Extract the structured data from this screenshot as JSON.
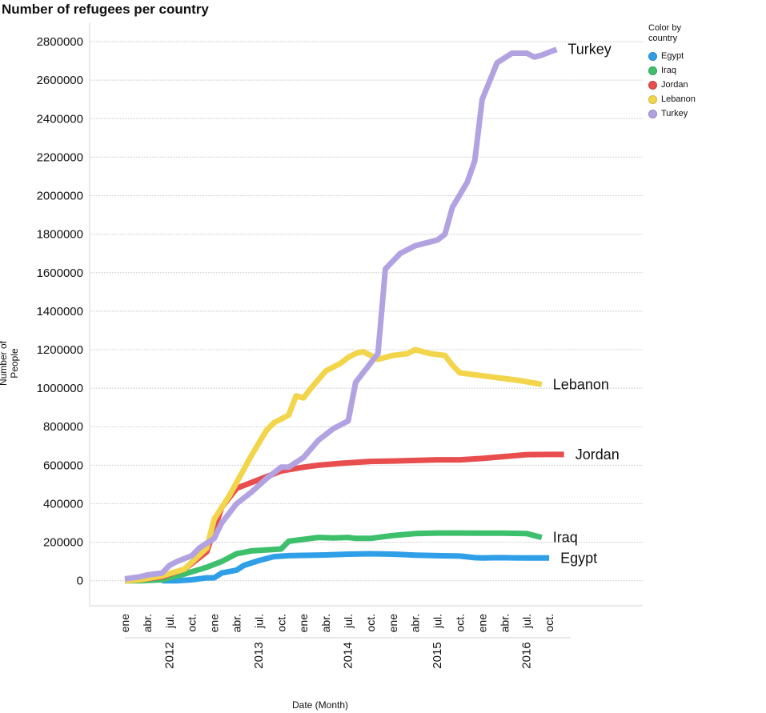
{
  "chart_data": {
    "type": "line",
    "title": "Number of refugees per country",
    "xlabel": "Date (Month)",
    "ylabel": "Number of People",
    "ylim": [
      -130000,
      2900000
    ],
    "grid": true,
    "legend_position": "top-right",
    "legend_title": "Color by country",
    "y_ticks": [
      0,
      200000,
      400000,
      600000,
      800000,
      1000000,
      1200000,
      1400000,
      1600000,
      1800000,
      2000000,
      2200000,
      2400000,
      2600000,
      2800000
    ],
    "x_month_ticks": [
      {
        "date": "2012-01",
        "label": "ene"
      },
      {
        "date": "2012-04",
        "label": "abr."
      },
      {
        "date": "2012-07",
        "label": "jul."
      },
      {
        "date": "2012-10",
        "label": "oct."
      },
      {
        "date": "2013-01",
        "label": "ene"
      },
      {
        "date": "2013-04",
        "label": "abr."
      },
      {
        "date": "2013-07",
        "label": "jul."
      },
      {
        "date": "2013-10",
        "label": "oct."
      },
      {
        "date": "2014-01",
        "label": "ene"
      },
      {
        "date": "2014-04",
        "label": "abr."
      },
      {
        "date": "2014-07",
        "label": "jul."
      },
      {
        "date": "2014-10",
        "label": "oct."
      },
      {
        "date": "2015-01",
        "label": "ene"
      },
      {
        "date": "2015-04",
        "label": "abr."
      },
      {
        "date": "2015-07",
        "label": "jul."
      },
      {
        "date": "2015-10",
        "label": "oct."
      },
      {
        "date": "2016-01",
        "label": "ene"
      },
      {
        "date": "2016-04",
        "label": "abr."
      },
      {
        "date": "2016-07",
        "label": "jul."
      },
      {
        "date": "2016-10",
        "label": "oct."
      }
    ],
    "x_years": [
      "2012",
      "2013",
      "2014",
      "2015",
      "2016"
    ],
    "series": [
      {
        "name": "Egypt",
        "color": "#2f9fe8",
        "end_label": "Egypt",
        "points": [
          [
            "2012-06",
            0
          ],
          [
            "2012-08",
            0
          ],
          [
            "2012-10",
            5000
          ],
          [
            "2012-12",
            15000
          ],
          [
            "2013-01",
            15000
          ],
          [
            "2013-02",
            40000
          ],
          [
            "2013-04",
            55000
          ],
          [
            "2013-05",
            80000
          ],
          [
            "2013-07",
            105000
          ],
          [
            "2013-09",
            125000
          ],
          [
            "2013-11",
            130000
          ],
          [
            "2014-01",
            132000
          ],
          [
            "2014-04",
            134000
          ],
          [
            "2014-07",
            138000
          ],
          [
            "2014-10",
            140000
          ],
          [
            "2015-01",
            138000
          ],
          [
            "2015-04",
            133000
          ],
          [
            "2015-07",
            130000
          ],
          [
            "2015-10",
            128000
          ],
          [
            "2015-12",
            120000
          ],
          [
            "2016-01",
            118000
          ],
          [
            "2016-03",
            120000
          ],
          [
            "2016-05",
            119000
          ],
          [
            "2016-07",
            118000
          ],
          [
            "2016-10",
            118000
          ]
        ]
      },
      {
        "name": "Iraq",
        "color": "#3dbf6b",
        "end_label": "Iraq",
        "points": [
          [
            "2012-01",
            0
          ],
          [
            "2012-03",
            0
          ],
          [
            "2012-06",
            5000
          ],
          [
            "2012-09",
            35000
          ],
          [
            "2012-12",
            70000
          ],
          [
            "2013-02",
            100000
          ],
          [
            "2013-04",
            140000
          ],
          [
            "2013-06",
            155000
          ],
          [
            "2013-08",
            160000
          ],
          [
            "2013-10",
            165000
          ],
          [
            "2013-11",
            205000
          ],
          [
            "2014-01",
            215000
          ],
          [
            "2014-03",
            225000
          ],
          [
            "2014-05",
            222000
          ],
          [
            "2014-07",
            225000
          ],
          [
            "2014-08",
            220000
          ],
          [
            "2014-10",
            220000
          ],
          [
            "2015-01",
            235000
          ],
          [
            "2015-04",
            245000
          ],
          [
            "2015-07",
            248000
          ],
          [
            "2015-10",
            248000
          ],
          [
            "2016-01",
            247000
          ],
          [
            "2016-04",
            247000
          ],
          [
            "2016-07",
            245000
          ],
          [
            "2016-09",
            225000
          ]
        ]
      },
      {
        "name": "Jordan",
        "color": "#e84e4e",
        "end_label": "Jordan",
        "points": [
          [
            "2012-01",
            0
          ],
          [
            "2012-03",
            5000
          ],
          [
            "2012-06",
            20000
          ],
          [
            "2012-09",
            60000
          ],
          [
            "2012-12",
            150000
          ],
          [
            "2013-02",
            380000
          ],
          [
            "2013-04",
            480000
          ],
          [
            "2013-06",
            510000
          ],
          [
            "2013-08",
            540000
          ],
          [
            "2013-10",
            570000
          ],
          [
            "2014-01",
            590000
          ],
          [
            "2014-03",
            600000
          ],
          [
            "2014-06",
            610000
          ],
          [
            "2014-10",
            620000
          ],
          [
            "2015-01",
            622000
          ],
          [
            "2015-04",
            625000
          ],
          [
            "2015-07",
            628000
          ],
          [
            "2015-10",
            628000
          ],
          [
            "2016-01",
            635000
          ],
          [
            "2016-04",
            645000
          ],
          [
            "2016-07",
            655000
          ],
          [
            "2016-10",
            656000
          ],
          [
            "2016-12",
            656000
          ]
        ]
      },
      {
        "name": "Lebanon",
        "color": "#f2d54a",
        "end_label": "Lebanon",
        "points": [
          [
            "2012-01",
            0
          ],
          [
            "2012-03",
            5000
          ],
          [
            "2012-06",
            25000
          ],
          [
            "2012-09",
            60000
          ],
          [
            "2012-12",
            170000
          ],
          [
            "2013-01",
            320000
          ],
          [
            "2013-03",
            440000
          ],
          [
            "2013-06",
            650000
          ],
          [
            "2013-08",
            780000
          ],
          [
            "2013-09",
            820000
          ],
          [
            "2013-11",
            860000
          ],
          [
            "2013-12",
            960000
          ],
          [
            "2014-01",
            950000
          ],
          [
            "2014-02",
            1000000
          ],
          [
            "2014-04",
            1090000
          ],
          [
            "2014-06",
            1130000
          ],
          [
            "2014-07",
            1160000
          ],
          [
            "2014-08",
            1180000
          ],
          [
            "2014-09",
            1190000
          ],
          [
            "2014-11",
            1150000
          ],
          [
            "2015-01",
            1170000
          ],
          [
            "2015-03",
            1180000
          ],
          [
            "2015-04",
            1200000
          ],
          [
            "2015-06",
            1180000
          ],
          [
            "2015-08",
            1170000
          ],
          [
            "2015-09",
            1120000
          ],
          [
            "2015-10",
            1080000
          ],
          [
            "2015-12",
            1070000
          ],
          [
            "2016-02",
            1060000
          ],
          [
            "2016-04",
            1050000
          ],
          [
            "2016-06",
            1040000
          ],
          [
            "2016-09",
            1020000
          ]
        ]
      },
      {
        "name": "Turkey",
        "color": "#b3a2e1",
        "end_label": "Turkey",
        "points": [
          [
            "2012-01",
            10000
          ],
          [
            "2012-03",
            20000
          ],
          [
            "2012-04",
            30000
          ],
          [
            "2012-06",
            40000
          ],
          [
            "2012-07",
            80000
          ],
          [
            "2012-08",
            100000
          ],
          [
            "2012-10",
            130000
          ],
          [
            "2012-11",
            170000
          ],
          [
            "2013-01",
            220000
          ],
          [
            "2013-02",
            300000
          ],
          [
            "2013-04",
            400000
          ],
          [
            "2013-06",
            460000
          ],
          [
            "2013-08",
            530000
          ],
          [
            "2013-10",
            590000
          ],
          [
            "2013-11",
            590000
          ],
          [
            "2014-01",
            640000
          ],
          [
            "2014-03",
            730000
          ],
          [
            "2014-05",
            790000
          ],
          [
            "2014-07",
            830000
          ],
          [
            "2014-08",
            1030000
          ],
          [
            "2014-10",
            1130000
          ],
          [
            "2014-11",
            1180000
          ],
          [
            "2014-12",
            1620000
          ],
          [
            "2015-02",
            1700000
          ],
          [
            "2015-04",
            1740000
          ],
          [
            "2015-05",
            1750000
          ],
          [
            "2015-07",
            1770000
          ],
          [
            "2015-08",
            1800000
          ],
          [
            "2015-09",
            1940000
          ],
          [
            "2015-11",
            2070000
          ],
          [
            "2015-12",
            2180000
          ],
          [
            "2016-01",
            2500000
          ],
          [
            "2016-03",
            2690000
          ],
          [
            "2016-05",
            2740000
          ],
          [
            "2016-07",
            2740000
          ],
          [
            "2016-08",
            2720000
          ],
          [
            "2016-09",
            2730000
          ],
          [
            "2016-11",
            2760000
          ]
        ]
      }
    ]
  }
}
